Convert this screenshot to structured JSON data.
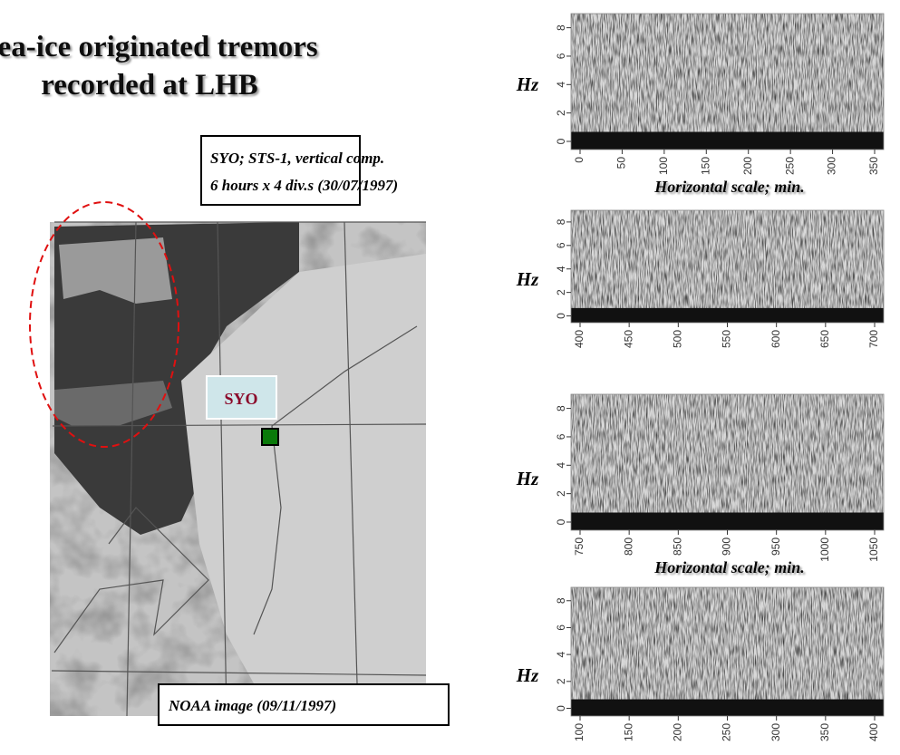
{
  "title": [
    "Sea-ice originated tremors",
    "recorded at LHB"
  ],
  "info_box": {
    "lines": [
      "SYO; STS-1, vertical comp.",
      "6 hours x 4 div.s (30/07/1997)"
    ]
  },
  "map": {
    "station_label": "SYO",
    "caption": "NOAA image (09/11/1997)"
  },
  "spectrograms": [
    {
      "y_label": "Hz",
      "y_ticks": [
        0,
        2,
        4,
        6,
        8
      ],
      "x_ticks": [
        0,
        50,
        100,
        150,
        200,
        250,
        300,
        350
      ],
      "x_axis_label": "Horizontal scale; min."
    },
    {
      "y_label": "Hz",
      "y_ticks": [
        0,
        2,
        4,
        6,
        8
      ],
      "x_ticks": [
        400,
        450,
        500,
        550,
        600,
        650,
        700
      ]
    },
    {
      "y_label": "Hz",
      "y_ticks": [
        0,
        2,
        4,
        6,
        8
      ],
      "x_ticks": [
        750,
        800,
        850,
        900,
        950,
        1000,
        1050
      ],
      "x_axis_label": "Horizontal scale; min."
    },
    {
      "y_label": "Hz",
      "y_ticks": [
        0,
        2,
        4,
        6,
        8
      ],
      "x_ticks": [
        100,
        150,
        200,
        250,
        300,
        350,
        400
      ]
    }
  ]
}
